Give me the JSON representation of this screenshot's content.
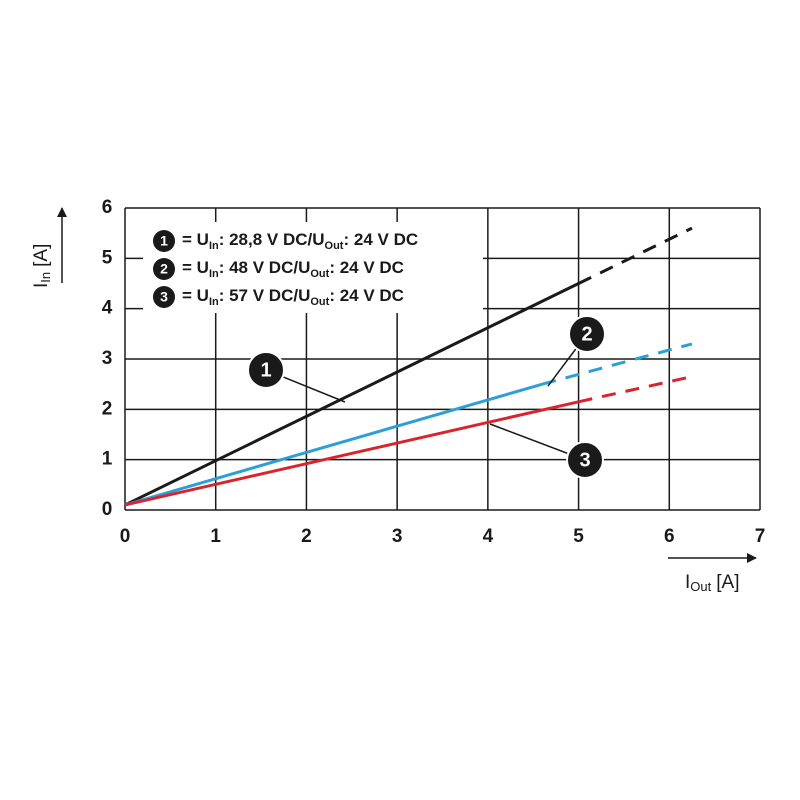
{
  "chart_data": {
    "type": "line",
    "xlabel": [
      "I",
      "Out",
      "[A]"
    ],
    "ylabel": [
      "I",
      "In",
      "[A]"
    ],
    "xlim": [
      0,
      7
    ],
    "ylim": [
      0,
      6
    ],
    "xticks": [
      0,
      1,
      2,
      3,
      4,
      5,
      6,
      7
    ],
    "yticks": [
      0,
      1,
      2,
      3,
      4,
      5,
      6
    ],
    "grid": true,
    "series": [
      {
        "name": "1",
        "color": "#1a1a1a",
        "x": [
          0,
          5,
          6.25
        ],
        "values": [
          0.1,
          4.5,
          5.6
        ],
        "dashed_from": 1,
        "legend": [
          "= U",
          "In",
          ": 28,8 V DC/U",
          "Out",
          ": 24 V DC"
        ]
      },
      {
        "name": "2",
        "color": "#2c9fd9",
        "x": [
          0,
          4.6,
          6.25
        ],
        "values": [
          0.1,
          2.5,
          3.3
        ],
        "dashed_from": 1,
        "legend": [
          "= U",
          "In",
          ": 48 V DC/U",
          "Out",
          ": 24 V DC"
        ]
      },
      {
        "name": "3",
        "color": "#d9232d",
        "x": [
          0,
          5,
          6.25
        ],
        "values": [
          0.1,
          2.15,
          2.65
        ],
        "dashed_from": 1,
        "legend": [
          "= U",
          "In",
          ": 57 V DC/U",
          "Out",
          ": 24 V DC"
        ]
      }
    ]
  }
}
